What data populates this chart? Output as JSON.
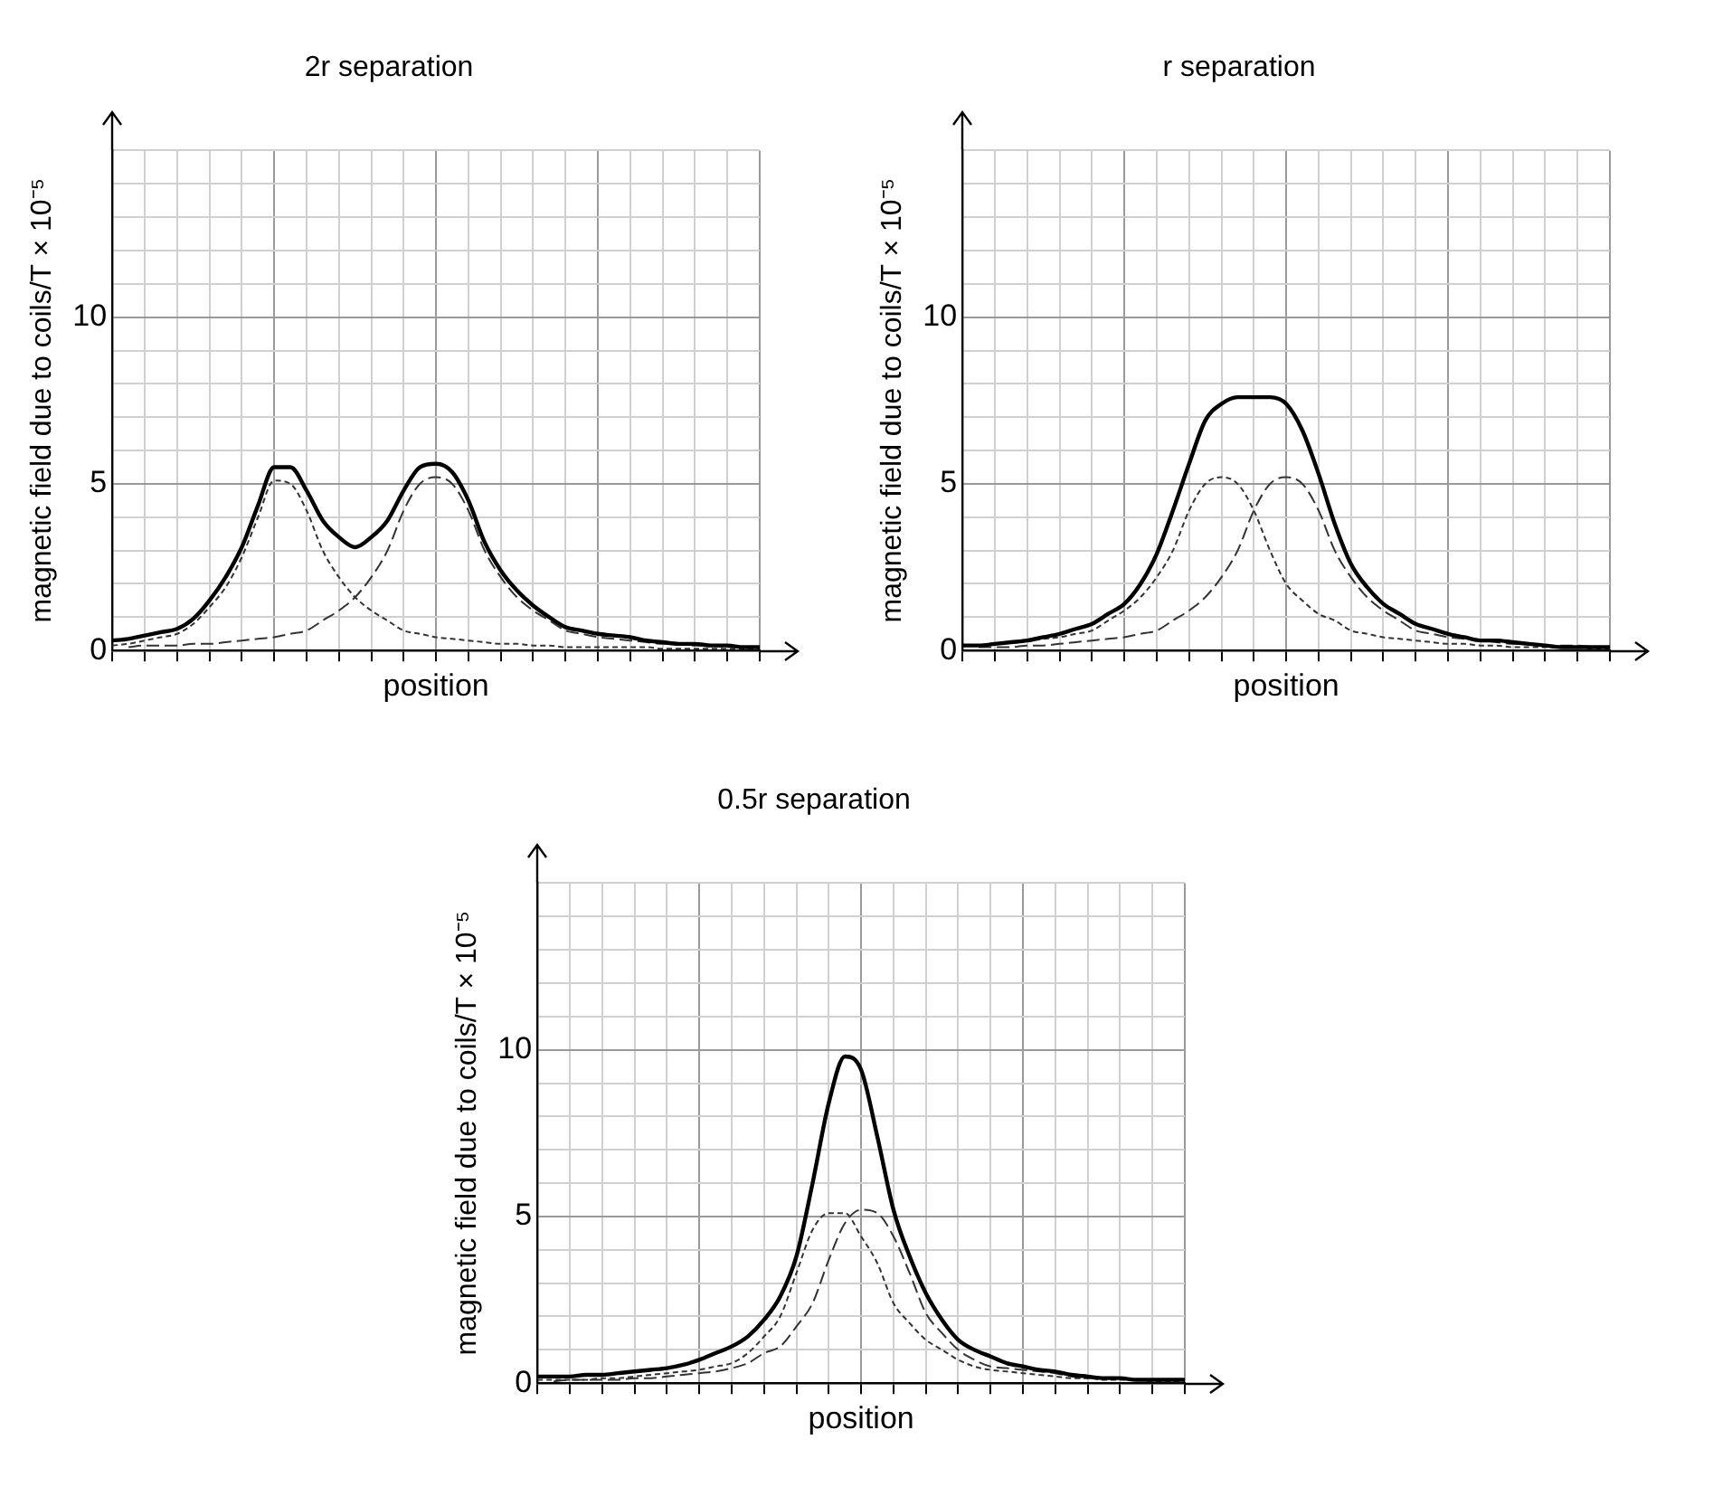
{
  "chart_data": [
    {
      "type": "line",
      "title": "2r separation",
      "xlabel": "position",
      "ylabel": "magnetic field due to coils/T × 10⁻⁵",
      "ylim": [
        0,
        15
      ],
      "categories": [
        null,
        null,
        null,
        null,
        null,
        null,
        null,
        null,
        null,
        null,
        null,
        null,
        null,
        null,
        null,
        null,
        null,
        null,
        null,
        null,
        null,
        null,
        null,
        null,
        null,
        null,
        null,
        null,
        null,
        null,
        null,
        null,
        null,
        null,
        null,
        null,
        null,
        null,
        null,
        null,
        null
      ],
      "yticks": [
        0,
        {
          "value": 1,
          "label": null
        },
        {
          "value": 2,
          "label": null
        },
        {
          "value": 3,
          "label": null
        },
        {
          "value": 4,
          "label": null
        },
        5,
        {
          "value": 6,
          "label": null
        },
        {
          "value": 7,
          "label": null
        },
        {
          "value": 8,
          "label": null
        },
        {
          "value": 9,
          "label": null
        },
        10,
        {
          "value": 11,
          "label": null
        },
        {
          "value": 12,
          "label": null
        },
        {
          "value": 13,
          "label": null
        },
        {
          "value": 14,
          "label": null
        },
        {
          "value": 15,
          "label": null
        }
      ],
      "tick_labels": "y",
      "grid": true,
      "legend": false,
      "marker": "none",
      "series": [
        {
          "color": "#000000",
          "line_style": "solid",
          "values": [
            0.3,
            0.35,
            0.45,
            0.55,
            0.65,
            0.95,
            1.5,
            2.2,
            3.1,
            4.35,
            5.5,
            5.5,
            4.8,
            3.9,
            3.4,
            3.1,
            3.4,
            3.9,
            4.8,
            5.5,
            5.6,
            5.35,
            4.5,
            3.25,
            2.4,
            1.8,
            1.35,
            1.0,
            0.7,
            0.6,
            0.5,
            0.45,
            0.4,
            0.3,
            0.25,
            0.2,
            0.2,
            0.15,
            0.15,
            0.1,
            0.1
          ]
        },
        {
          "color": "#333333",
          "line_style": "dotted",
          "values": [
            0.15,
            0.2,
            0.3,
            0.4,
            0.5,
            0.8,
            1.3,
            1.9,
            2.8,
            4.0,
            5.1,
            5.0,
            4.2,
            3.0,
            2.2,
            1.6,
            1.2,
            0.9,
            0.6,
            0.5,
            0.4,
            0.35,
            0.3,
            0.25,
            0.2,
            0.2,
            0.15,
            0.15,
            0.1,
            0.1,
            0.1,
            0.1,
            0.1,
            0.1,
            0.05,
            0.05,
            0.05,
            0.05,
            0.05,
            0.05,
            0.05
          ]
        },
        {
          "color": "#333333",
          "line_style": "dashed",
          "values": [
            null,
            0.1,
            0.15,
            0.15,
            0.15,
            0.2,
            0.2,
            0.25,
            0.3,
            0.35,
            0.4,
            0.5,
            0.6,
            0.9,
            1.2,
            1.6,
            2.2,
            3.0,
            4.2,
            5.0,
            5.2,
            5.0,
            4.2,
            3.0,
            2.2,
            1.6,
            1.2,
            0.9,
            0.6,
            0.5,
            0.4,
            0.35,
            0.3,
            0.25,
            0.2,
            0.2,
            0.15,
            0.15,
            0.1,
            0.1,
            null
          ]
        }
      ]
    },
    {
      "type": "line",
      "title": "r separation",
      "xlabel": "position",
      "ylabel": "magnetic field due to coils/T × 10⁻⁵",
      "ylim": [
        0,
        15
      ],
      "categories": [
        null,
        null,
        null,
        null,
        null,
        null,
        null,
        null,
        null,
        null,
        null,
        null,
        null,
        null,
        null,
        null,
        null,
        null,
        null,
        null,
        null,
        null,
        null,
        null,
        null,
        null,
        null,
        null,
        null,
        null,
        null,
        null,
        null,
        null,
        null,
        null,
        null,
        null,
        null,
        null,
        null
      ],
      "yticks": [
        0,
        {
          "value": 1,
          "label": null
        },
        {
          "value": 2,
          "label": null
        },
        {
          "value": 3,
          "label": null
        },
        {
          "value": 4,
          "label": null
        },
        5,
        {
          "value": 6,
          "label": null
        },
        {
          "value": 7,
          "label": null
        },
        {
          "value": 8,
          "label": null
        },
        {
          "value": 9,
          "label": null
        },
        10,
        {
          "value": 11,
          "label": null
        },
        {
          "value": 12,
          "label": null
        },
        {
          "value": 13,
          "label": null
        },
        {
          "value": 14,
          "label": null
        },
        {
          "value": 15,
          "label": null
        }
      ],
      "tick_labels": "y",
      "grid": true,
      "legend": false,
      "marker": "none",
      "series": [
        {
          "color": "#000000",
          "line_style": "solid",
          "values": [
            0.15,
            0.15,
            0.2,
            0.25,
            0.3,
            0.4,
            0.5,
            0.65,
            0.8,
            1.1,
            1.4,
            2.0,
            2.9,
            4.2,
            5.6,
            6.9,
            7.4,
            7.6,
            7.6,
            7.6,
            7.4,
            6.6,
            5.3,
            3.8,
            2.6,
            1.9,
            1.4,
            1.1,
            0.8,
            0.65,
            0.5,
            0.4,
            0.3,
            0.3,
            0.25,
            0.2,
            0.15,
            0.1,
            0.1,
            0.1,
            0.1
          ]
        },
        {
          "color": "#333333",
          "line_style": "dotted",
          "values": [
            0.15,
            0.15,
            0.2,
            0.25,
            0.3,
            0.35,
            0.4,
            0.5,
            0.6,
            0.9,
            1.2,
            1.6,
            2.2,
            3.0,
            4.2,
            5.0,
            5.2,
            5.0,
            4.2,
            3.0,
            2.0,
            1.5,
            1.1,
            0.9,
            0.6,
            0.5,
            0.4,
            0.35,
            0.3,
            0.25,
            0.2,
            0.2,
            0.15,
            0.15,
            0.1,
            0.1,
            0.1,
            0.1,
            0.1,
            0.05,
            0.05
          ]
        },
        {
          "color": "#333333",
          "line_style": "dashed",
          "values": [
            null,
            0.1,
            0.1,
            0.1,
            0.15,
            0.15,
            0.2,
            0.25,
            0.3,
            0.35,
            0.4,
            0.5,
            0.6,
            0.9,
            1.2,
            1.6,
            2.2,
            3.0,
            4.2,
            5.0,
            5.2,
            5.0,
            4.2,
            3.0,
            2.2,
            1.6,
            1.2,
            0.9,
            0.6,
            0.5,
            0.4,
            0.35,
            0.3,
            0.25,
            0.2,
            0.2,
            0.15,
            0.15,
            0.15,
            0.1,
            null
          ]
        }
      ]
    },
    {
      "type": "line",
      "title": "0.5r separation",
      "xlabel": "position",
      "ylabel": "magnetic field due to coils/T × 10⁻⁵",
      "ylim": [
        0,
        15
      ],
      "categories": [
        null,
        null,
        null,
        null,
        null,
        null,
        null,
        null,
        null,
        null,
        null,
        null,
        null,
        null,
        null,
        null,
        null,
        null,
        null,
        null,
        null,
        null,
        null,
        null,
        null,
        null,
        null,
        null,
        null,
        null,
        null,
        null,
        null,
        null,
        null,
        null,
        null,
        null,
        null,
        null,
        null
      ],
      "yticks": [
        0,
        {
          "value": 1,
          "label": null
        },
        {
          "value": 2,
          "label": null
        },
        {
          "value": 3,
          "label": null
        },
        {
          "value": 4,
          "label": null
        },
        5,
        {
          "value": 6,
          "label": null
        },
        {
          "value": 7,
          "label": null
        },
        {
          "value": 8,
          "label": null
        },
        {
          "value": 9,
          "label": null
        },
        10,
        {
          "value": 11,
          "label": null
        },
        {
          "value": 12,
          "label": null
        },
        {
          "value": 13,
          "label": null
        },
        {
          "value": 14,
          "label": null
        },
        {
          "value": 15,
          "label": null
        }
      ],
      "tick_labels": "y",
      "grid": true,
      "legend": false,
      "marker": "none",
      "series": [
        {
          "color": "#000000",
          "line_style": "solid",
          "values": [
            0.2,
            0.2,
            0.2,
            0.25,
            0.25,
            0.3,
            0.35,
            0.4,
            0.45,
            0.55,
            0.7,
            0.9,
            1.1,
            1.4,
            1.9,
            2.6,
            3.8,
            6.0,
            8.4,
            9.8,
            9.4,
            7.4,
            5.2,
            3.8,
            2.7,
            1.9,
            1.3,
            1.0,
            0.8,
            0.6,
            0.5,
            0.4,
            0.35,
            0.25,
            0.2,
            0.15,
            0.15,
            0.1,
            0.1,
            0.1,
            0.1
          ]
        },
        {
          "color": "#333333",
          "line_style": "dotted",
          "values": [
            0.1,
            0.1,
            0.1,
            0.1,
            0.15,
            0.15,
            0.2,
            0.25,
            0.3,
            0.35,
            0.4,
            0.5,
            0.6,
            0.9,
            1.4,
            2.0,
            3.3,
            4.6,
            5.1,
            5.1,
            4.4,
            3.6,
            2.4,
            1.8,
            1.3,
            1.0,
            0.7,
            0.5,
            0.4,
            0.35,
            0.3,
            0.25,
            0.2,
            0.15,
            0.15,
            0.1,
            0.1,
            0.1,
            0.05,
            0.05,
            0.05
          ]
        },
        {
          "color": "#333333",
          "line_style": "dashed",
          "values": [
            null,
            0.05,
            0.1,
            0.1,
            0.1,
            0.1,
            0.15,
            0.15,
            0.2,
            0.25,
            0.3,
            0.35,
            0.45,
            0.6,
            0.9,
            1.1,
            1.7,
            2.4,
            3.7,
            4.8,
            5.2,
            5.1,
            4.4,
            3.3,
            2.1,
            1.5,
            1.0,
            0.7,
            0.5,
            0.45,
            0.4,
            0.35,
            0.3,
            0.2,
            0.15,
            0.15,
            0.15,
            0.1,
            0.1,
            0.1,
            null
          ]
        }
      ]
    }
  ]
}
